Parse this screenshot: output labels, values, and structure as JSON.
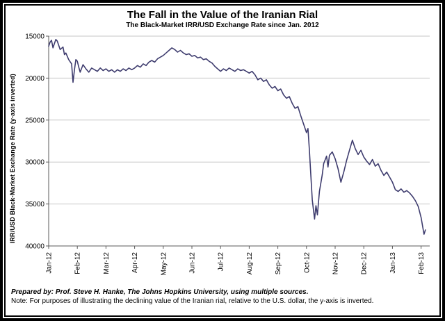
{
  "title": "The Fall in the Value of the Iranian Rial",
  "subtitle": "The Black-Market IRR/USD Exchange Rate since Jan. 2012",
  "footer": {
    "prepared_by": "Prepared by: Prof. Steve H. Hanke, The Johns Hopkins University, using multiple sources.",
    "note": "Note: For purposes of illustrating the declining value of the Iranian rial, relative to the U.S. dollar, the y-axis is inverted."
  },
  "chart_data": {
    "type": "line",
    "title": "The Fall in the Value of the Iranian Rial",
    "subtitle": "The Black-Market IRR/USD Exchange Rate since Jan. 2012",
    "ylabel": "IRR/USD Black-Market Exchange Rate (y-axis inverted)",
    "xlabel": "",
    "y_axis_inverted": true,
    "y_ticks": [
      15000,
      20000,
      25000,
      30000,
      35000,
      40000
    ],
    "y_tick_labels": [
      "15000",
      "20000",
      "25000",
      "30000",
      "35000",
      "40000"
    ],
    "x_tick_labels": [
      "Jan-12",
      "Feb-12",
      "Mar-12",
      "Apr-12",
      "May-12",
      "Jun-12",
      "Jul-12",
      "Aug-12",
      "Sep-12",
      "Oct-12",
      "Nov-12",
      "Dec-12",
      "Jan-13",
      "Feb-13"
    ],
    "x_range_months": [
      0,
      13.3
    ],
    "grid": "horizontal",
    "legend": "none",
    "line_color": "#3E3C6E",
    "grid_color": "#C6C6C6",
    "axis_color": "#595959",
    "series": [
      {
        "name": "IRR/USD black-market exchange rate",
        "points": [
          [
            0.0,
            16200
          ],
          [
            0.05,
            15700
          ],
          [
            0.1,
            15500
          ],
          [
            0.15,
            16400
          ],
          [
            0.2,
            15900
          ],
          [
            0.25,
            15400
          ],
          [
            0.3,
            15600
          ],
          [
            0.4,
            16600
          ],
          [
            0.5,
            16300
          ],
          [
            0.55,
            17200
          ],
          [
            0.6,
            17000
          ],
          [
            0.7,
            17800
          ],
          [
            0.8,
            18300
          ],
          [
            0.85,
            20500
          ],
          [
            0.9,
            19000
          ],
          [
            0.95,
            17800
          ],
          [
            1.0,
            18000
          ],
          [
            1.05,
            18700
          ],
          [
            1.1,
            19300
          ],
          [
            1.2,
            18400
          ],
          [
            1.3,
            18900
          ],
          [
            1.4,
            19300
          ],
          [
            1.5,
            18800
          ],
          [
            1.6,
            19000
          ],
          [
            1.7,
            19200
          ],
          [
            1.8,
            18800
          ],
          [
            1.9,
            19100
          ],
          [
            2.0,
            18900
          ],
          [
            2.1,
            19200
          ],
          [
            2.2,
            19000
          ],
          [
            2.3,
            19300
          ],
          [
            2.4,
            19000
          ],
          [
            2.5,
            19200
          ],
          [
            2.6,
            18900
          ],
          [
            2.7,
            19100
          ],
          [
            2.8,
            18800
          ],
          [
            2.9,
            19000
          ],
          [
            3.0,
            18800
          ],
          [
            3.1,
            18500
          ],
          [
            3.2,
            18700
          ],
          [
            3.3,
            18300
          ],
          [
            3.4,
            18500
          ],
          [
            3.5,
            18100
          ],
          [
            3.6,
            17900
          ],
          [
            3.7,
            18100
          ],
          [
            3.8,
            17700
          ],
          [
            3.9,
            17500
          ],
          [
            4.0,
            17300
          ],
          [
            4.1,
            17000
          ],
          [
            4.2,
            16700
          ],
          [
            4.3,
            16400
          ],
          [
            4.4,
            16600
          ],
          [
            4.5,
            16900
          ],
          [
            4.6,
            16700
          ],
          [
            4.7,
            17000
          ],
          [
            4.8,
            17200
          ],
          [
            4.9,
            17100
          ],
          [
            5.0,
            17400
          ],
          [
            5.1,
            17300
          ],
          [
            5.2,
            17600
          ],
          [
            5.3,
            17500
          ],
          [
            5.4,
            17800
          ],
          [
            5.5,
            17700
          ],
          [
            5.6,
            18000
          ],
          [
            5.7,
            18200
          ],
          [
            5.8,
            18600
          ],
          [
            5.9,
            18900
          ],
          [
            6.0,
            19200
          ],
          [
            6.1,
            18900
          ],
          [
            6.2,
            19100
          ],
          [
            6.3,
            18800
          ],
          [
            6.4,
            19000
          ],
          [
            6.5,
            19200
          ],
          [
            6.6,
            18900
          ],
          [
            6.7,
            19100
          ],
          [
            6.8,
            19000
          ],
          [
            6.9,
            19200
          ],
          [
            7.0,
            19400
          ],
          [
            7.1,
            19200
          ],
          [
            7.2,
            19600
          ],
          [
            7.3,
            20200
          ],
          [
            7.4,
            20000
          ],
          [
            7.5,
            20400
          ],
          [
            7.6,
            20200
          ],
          [
            7.7,
            20800
          ],
          [
            7.8,
            21200
          ],
          [
            7.9,
            21000
          ],
          [
            8.0,
            21500
          ],
          [
            8.1,
            21300
          ],
          [
            8.2,
            22000
          ],
          [
            8.3,
            22400
          ],
          [
            8.4,
            22200
          ],
          [
            8.5,
            23000
          ],
          [
            8.6,
            23600
          ],
          [
            8.7,
            23400
          ],
          [
            8.8,
            24500
          ],
          [
            8.9,
            25500
          ],
          [
            9.0,
            26500
          ],
          [
            9.05,
            26000
          ],
          [
            9.1,
            28500
          ],
          [
            9.2,
            34500
          ],
          [
            9.28,
            36800
          ],
          [
            9.33,
            35200
          ],
          [
            9.38,
            36300
          ],
          [
            9.45,
            33500
          ],
          [
            9.55,
            31500
          ],
          [
            9.6,
            30200
          ],
          [
            9.7,
            29300
          ],
          [
            9.75,
            30600
          ],
          [
            9.8,
            29200
          ],
          [
            9.9,
            28800
          ],
          [
            10.0,
            29600
          ],
          [
            10.1,
            30800
          ],
          [
            10.2,
            32400
          ],
          [
            10.3,
            31200
          ],
          [
            10.4,
            29800
          ],
          [
            10.5,
            28600
          ],
          [
            10.6,
            27400
          ],
          [
            10.7,
            28400
          ],
          [
            10.8,
            29100
          ],
          [
            10.9,
            28600
          ],
          [
            11.0,
            29400
          ],
          [
            11.1,
            29900
          ],
          [
            11.2,
            30300
          ],
          [
            11.3,
            29700
          ],
          [
            11.4,
            30500
          ],
          [
            11.5,
            30200
          ],
          [
            11.6,
            31000
          ],
          [
            11.7,
            31600
          ],
          [
            11.8,
            31200
          ],
          [
            11.9,
            31800
          ],
          [
            12.0,
            32400
          ],
          [
            12.1,
            33300
          ],
          [
            12.2,
            33500
          ],
          [
            12.3,
            33200
          ],
          [
            12.4,
            33600
          ],
          [
            12.5,
            33400
          ],
          [
            12.6,
            33700
          ],
          [
            12.7,
            34100
          ],
          [
            12.8,
            34600
          ],
          [
            12.9,
            35300
          ],
          [
            13.0,
            36600
          ],
          [
            13.05,
            37600
          ],
          [
            13.1,
            38600
          ],
          [
            13.15,
            38100
          ]
        ]
      }
    ]
  }
}
